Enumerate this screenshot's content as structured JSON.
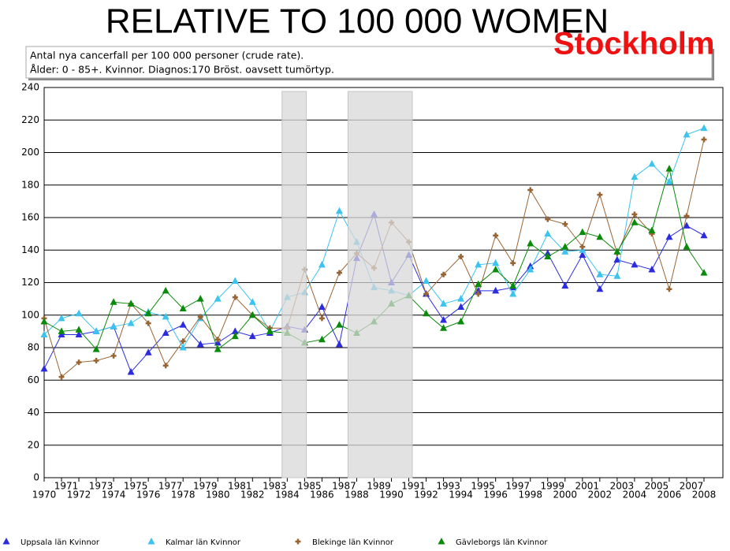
{
  "chart_data": {
    "type": "line",
    "title": "RELATIVE TO 100 000 WOMEN",
    "region": "Stockholm",
    "subtitle": [
      "Antal nya cancerfall per 100 000 personer (crude rate).",
      "Ålder: 0 - 85+. Kvinnor. Diagnos:170 Bröst. oavsett tumörtyp."
    ],
    "x": [
      1970,
      1971,
      1972,
      1973,
      1974,
      1975,
      1976,
      1977,
      1978,
      1979,
      1980,
      1981,
      1982,
      1983,
      1984,
      1985,
      1986,
      1987,
      1988,
      1989,
      1990,
      1991,
      1992,
      1993,
      1994,
      1995,
      1996,
      1997,
      1998,
      1999,
      2000,
      2001,
      2002,
      2003,
      2004,
      2005,
      2006,
      2007,
      2008
    ],
    "xlim": [
      1970,
      2008
    ],
    "xticks": [
      1970,
      1971,
      1972,
      1973,
      1974,
      1975,
      1976,
      1977,
      1978,
      1979,
      1980,
      1981,
      1982,
      1983,
      1984,
      1985,
      1986,
      1987,
      1988,
      1989,
      1990,
      1991,
      1992,
      1993,
      1994,
      1995,
      1996,
      1997,
      1998,
      1999,
      2000,
      2001,
      2002,
      2003,
      2004,
      2005,
      2006,
      2007,
      2008
    ],
    "ylim": [
      0,
      240
    ],
    "yticks": [
      0,
      20,
      40,
      60,
      80,
      100,
      120,
      140,
      160,
      180,
      200,
      220,
      240
    ],
    "grid": true,
    "shaded_periods": [
      [
        1983.7,
        1985.1
      ],
      [
        1987.5,
        1991.2
      ]
    ],
    "series": [
      {
        "name": "Uppsala län Kvinnor",
        "color": "#2b2bdf",
        "marker": "triangle",
        "values": [
          67,
          88,
          88,
          90,
          93,
          65,
          77,
          89,
          94,
          82,
          83,
          90,
          87,
          89,
          93,
          91,
          105,
          82,
          135,
          162,
          120,
          137,
          113,
          97,
          105,
          115,
          115,
          117,
          130,
          138,
          118,
          137,
          116,
          134,
          131,
          128,
          148,
          155,
          149
        ]
      },
      {
        "name": "Kalmar län Kvinnor",
        "color": "#3cc3f0",
        "marker": "triangle",
        "values": [
          88,
          98,
          101,
          90,
          93,
          95,
          102,
          99,
          80,
          98,
          110,
          121,
          108,
          90,
          111,
          114,
          131,
          164,
          145,
          117,
          115,
          112,
          121,
          107,
          110,
          131,
          132,
          113,
          128,
          150,
          139,
          140,
          125,
          124,
          185,
          193,
          182,
          211,
          215
        ]
      },
      {
        "name": "Blekinge län Kvinnor",
        "color": "#9a6432",
        "marker": "plus",
        "values": [
          98,
          62,
          71,
          72,
          75,
          107,
          95,
          69,
          84,
          99,
          85,
          111,
          100,
          92,
          92,
          128,
          98,
          126,
          138,
          129,
          157,
          145,
          113,
          125,
          136,
          113,
          149,
          132,
          177,
          159,
          156,
          142,
          174,
          138,
          162,
          150,
          116,
          161,
          208
        ]
      },
      {
        "name": "Gävleborgs län Kvinnor",
        "color": "#0a8a0a",
        "marker": "triangle",
        "values": [
          96,
          90,
          91,
          79,
          108,
          107,
          101,
          115,
          104,
          110,
          79,
          87,
          100,
          90,
          89,
          83,
          85,
          94,
          89,
          96,
          107,
          112,
          101,
          92,
          96,
          119,
          128,
          118,
          144,
          136,
          142,
          151,
          148,
          139,
          157,
          152,
          190,
          142,
          126
        ]
      }
    ]
  }
}
